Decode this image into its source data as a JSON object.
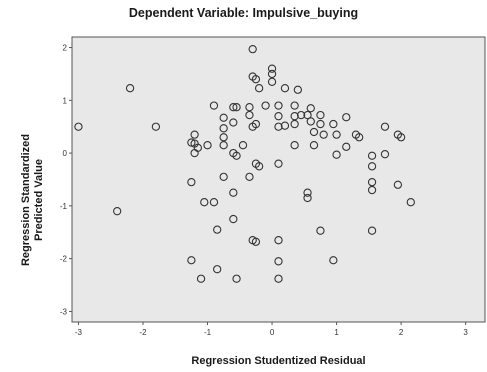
{
  "chart_data": {
    "type": "scatter",
    "title": "Dependent Variable: Impulsive_buying",
    "xlabel": "Regression Studentized Residual",
    "ylabel_lines": [
      "Regression Standardized",
      "Predicted Value"
    ],
    "xlim": [
      -3.1,
      3.3
    ],
    "ylim": [
      -3.2,
      2.2
    ],
    "x_ticks": [
      -3,
      -2,
      -1,
      0,
      1,
      2,
      3
    ],
    "y_ticks": [
      2,
      1,
      0,
      -1,
      -2,
      -3
    ],
    "grid": false,
    "legend": "none",
    "colors": {
      "panel": "#e8e8e8",
      "marker": "#333333",
      "axis": "#555555"
    },
    "points": [
      {
        "x": -0.3,
        "y": 1.97
      },
      {
        "x": 0.0,
        "y": 1.6
      },
      {
        "x": 0.0,
        "y": 1.5
      },
      {
        "x": -0.3,
        "y": 1.45
      },
      {
        "x": -0.25,
        "y": 1.4
      },
      {
        "x": 0.0,
        "y": 1.35
      },
      {
        "x": -0.2,
        "y": 1.23
      },
      {
        "x": 0.2,
        "y": 1.23
      },
      {
        "x": 0.4,
        "y": 1.2
      },
      {
        "x": -2.2,
        "y": 1.23
      },
      {
        "x": -0.9,
        "y": 0.9
      },
      {
        "x": -0.6,
        "y": 0.87
      },
      {
        "x": -0.55,
        "y": 0.87
      },
      {
        "x": -0.35,
        "y": 0.87
      },
      {
        "x": -0.1,
        "y": 0.9
      },
      {
        "x": 0.1,
        "y": 0.9
      },
      {
        "x": 0.35,
        "y": 0.9
      },
      {
        "x": 0.6,
        "y": 0.85
      },
      {
        "x": -0.35,
        "y": 0.72
      },
      {
        "x": 0.1,
        "y": 0.7
      },
      {
        "x": 0.35,
        "y": 0.7
      },
      {
        "x": 0.45,
        "y": 0.72
      },
      {
        "x": 0.55,
        "y": 0.72
      },
      {
        "x": 0.75,
        "y": 0.72
      },
      {
        "x": 1.15,
        "y": 0.68
      },
      {
        "x": -0.75,
        "y": 0.67
      },
      {
        "x": -0.6,
        "y": 0.58
      },
      {
        "x": -0.75,
        "y": 0.47
      },
      {
        "x": -0.3,
        "y": 0.5
      },
      {
        "x": -0.25,
        "y": 0.55
      },
      {
        "x": 0.1,
        "y": 0.5
      },
      {
        "x": 0.2,
        "y": 0.52
      },
      {
        "x": 0.35,
        "y": 0.55
      },
      {
        "x": 0.6,
        "y": 0.6
      },
      {
        "x": 0.75,
        "y": 0.55
      },
      {
        "x": 0.95,
        "y": 0.55
      },
      {
        "x": 1.75,
        "y": 0.5
      },
      {
        "x": -3.0,
        "y": 0.5
      },
      {
        "x": -1.8,
        "y": 0.5
      },
      {
        "x": -1.2,
        "y": 0.35
      },
      {
        "x": -0.75,
        "y": 0.3
      },
      {
        "x": 0.65,
        "y": 0.4
      },
      {
        "x": 0.8,
        "y": 0.35
      },
      {
        "x": 1.0,
        "y": 0.35
      },
      {
        "x": 1.3,
        "y": 0.35
      },
      {
        "x": 1.35,
        "y": 0.3
      },
      {
        "x": 1.95,
        "y": 0.35
      },
      {
        "x": 2.0,
        "y": 0.3
      },
      {
        "x": -1.2,
        "y": 0.18
      },
      {
        "x": -1.15,
        "y": 0.1
      },
      {
        "x": -1.25,
        "y": 0.2
      },
      {
        "x": -1.0,
        "y": 0.15
      },
      {
        "x": -0.75,
        "y": 0.15
      },
      {
        "x": -0.45,
        "y": 0.15
      },
      {
        "x": 0.35,
        "y": 0.15
      },
      {
        "x": 0.65,
        "y": 0.15
      },
      {
        "x": 1.15,
        "y": 0.12
      },
      {
        "x": -1.2,
        "y": 0.0
      },
      {
        "x": -0.6,
        "y": 0.0
      },
      {
        "x": -0.55,
        "y": -0.05
      },
      {
        "x": 1.0,
        "y": -0.03
      },
      {
        "x": 1.55,
        "y": -0.05
      },
      {
        "x": 1.75,
        "y": -0.02
      },
      {
        "x": -0.25,
        "y": -0.2
      },
      {
        "x": -0.2,
        "y": -0.25
      },
      {
        "x": 0.1,
        "y": -0.2
      },
      {
        "x": 1.55,
        "y": -0.25
      },
      {
        "x": -1.25,
        "y": -0.55
      },
      {
        "x": -0.75,
        "y": -0.45
      },
      {
        "x": -0.35,
        "y": -0.45
      },
      {
        "x": 1.55,
        "y": -0.55
      },
      {
        "x": 1.55,
        "y": -0.7
      },
      {
        "x": 1.95,
        "y": -0.6
      },
      {
        "x": -0.6,
        "y": -0.75
      },
      {
        "x": 0.55,
        "y": -0.75
      },
      {
        "x": 0.55,
        "y": -0.85
      },
      {
        "x": -1.05,
        "y": -0.93
      },
      {
        "x": -0.9,
        "y": -0.93
      },
      {
        "x": 2.15,
        "y": -0.93
      },
      {
        "x": -2.4,
        "y": -1.1
      },
      {
        "x": -0.6,
        "y": -1.25
      },
      {
        "x": -0.85,
        "y": -1.45
      },
      {
        "x": 0.75,
        "y": -1.47
      },
      {
        "x": 1.55,
        "y": -1.47
      },
      {
        "x": -0.3,
        "y": -1.65
      },
      {
        "x": -0.25,
        "y": -1.68
      },
      {
        "x": 0.1,
        "y": -1.65
      },
      {
        "x": -1.25,
        "y": -2.03
      },
      {
        "x": 0.1,
        "y": -2.05
      },
      {
        "x": 0.95,
        "y": -2.03
      },
      {
        "x": -0.85,
        "y": -2.2
      },
      {
        "x": -1.1,
        "y": -2.38
      },
      {
        "x": -0.55,
        "y": -2.38
      },
      {
        "x": 0.1,
        "y": -2.38
      }
    ]
  }
}
